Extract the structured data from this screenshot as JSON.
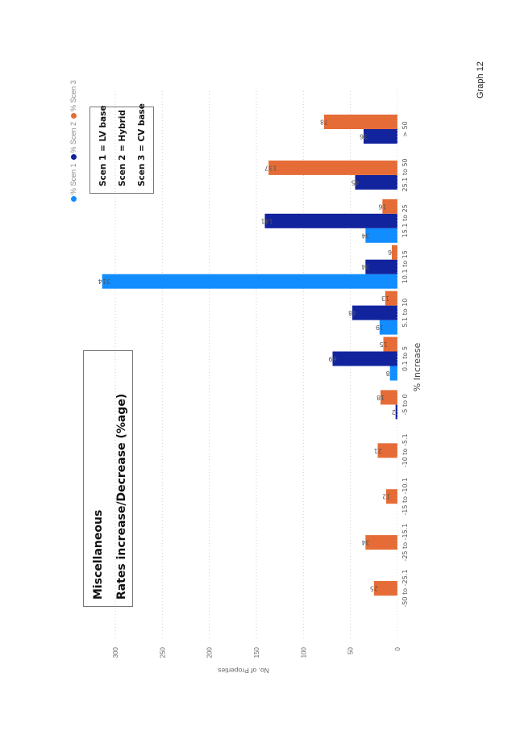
{
  "page_label": "Graph 12",
  "title": {
    "line1": "Miscellaneous",
    "line2": "Rates increase/Decrease (%age)"
  },
  "scenario_key": [
    "Scen 1 = LV base",
    "Scen 2 = Hybrid",
    "Scen 3 = CV base"
  ],
  "chart_data": {
    "type": "bar",
    "orientation": "rotated page (chart drawn rotated 90° counter-clockwise)",
    "xlabel": "% Increase",
    "ylabel": "No. of Properties",
    "ylim": [
      0,
      300
    ],
    "yticks": [
      0,
      50,
      100,
      150,
      200,
      250,
      300
    ],
    "grid": true,
    "legend_position": "top",
    "categories": [
      "-50 to -25.1",
      "-25 to -15.1",
      "-15 to -10.1",
      "-10 to -5.1",
      "-5 to 0",
      "0.1 to 5",
      "5.1 to 10",
      "10.1 to 15",
      "15.1 to 25",
      "25.1 to 50",
      "> 50"
    ],
    "series": [
      {
        "name": "% Scen 1",
        "color": "#118DFF",
        "values": [
          null,
          null,
          null,
          null,
          null,
          8,
          19,
          314,
          34,
          null,
          null
        ]
      },
      {
        "name": "% Scen 2",
        "color": "#12239E",
        "values": [
          null,
          null,
          null,
          null,
          2,
          69,
          48,
          34,
          141,
          45,
          36
        ]
      },
      {
        "name": "% Scen 3",
        "color": "#E66C37",
        "values": [
          25,
          34,
          12,
          21,
          18,
          15,
          13,
          6,
          16,
          137,
          78
        ]
      }
    ]
  }
}
